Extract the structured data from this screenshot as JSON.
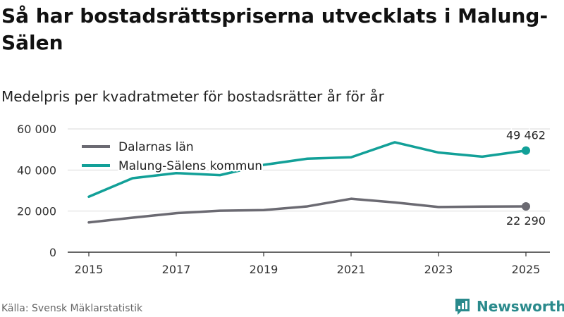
{
  "header": {
    "title": "Så har bostadsrättspriserna utvecklats i Malung-Sälen",
    "subtitle": "Medelpris per kvadratmeter för bostadsrätter år för år"
  },
  "footer": {
    "source": "Källa: Svensk Mäklarstatistik",
    "brand": "Newsworthy"
  },
  "colors": {
    "dalarna": "#6b6a72",
    "malung": "#12a098",
    "grid": "#d9d9d9",
    "brand": "#2a8a8c"
  },
  "chart_data": {
    "type": "line",
    "title": "Så har bostadsrättspriserna utvecklats i Malung-Sälen",
    "subtitle": "Medelpris per kvadratmeter för bostadsrätter år för år",
    "xlabel": "",
    "ylabel": "",
    "ylim": [
      0,
      60000
    ],
    "yticks": [
      0,
      20000,
      40000,
      60000
    ],
    "ytick_labels": [
      "0",
      "20 000",
      "40 000",
      "60 000"
    ],
    "xticks": [
      2015,
      2017,
      2019,
      2021,
      2023,
      2025
    ],
    "xtick_labels": [
      "2015",
      "2017",
      "2019",
      "2021",
      "2023",
      "2025"
    ],
    "x": [
      2015,
      2016,
      2017,
      2018,
      2019,
      2020,
      2021,
      2022,
      2023,
      2024,
      2025
    ],
    "legend_position": "top-left",
    "series": [
      {
        "name": "Dalarnas län",
        "key": "dalarna",
        "values": [
          14500,
          16800,
          19000,
          20200,
          20500,
          22300,
          26000,
          24200,
          22000,
          22200,
          22290
        ],
        "end_label": "22 290"
      },
      {
        "name": "Malung-Sälens kommun",
        "key": "malung",
        "values": [
          27000,
          36000,
          38500,
          37500,
          42500,
          45500,
          46200,
          53500,
          48500,
          46500,
          49462
        ],
        "end_label": "49 462"
      }
    ]
  }
}
